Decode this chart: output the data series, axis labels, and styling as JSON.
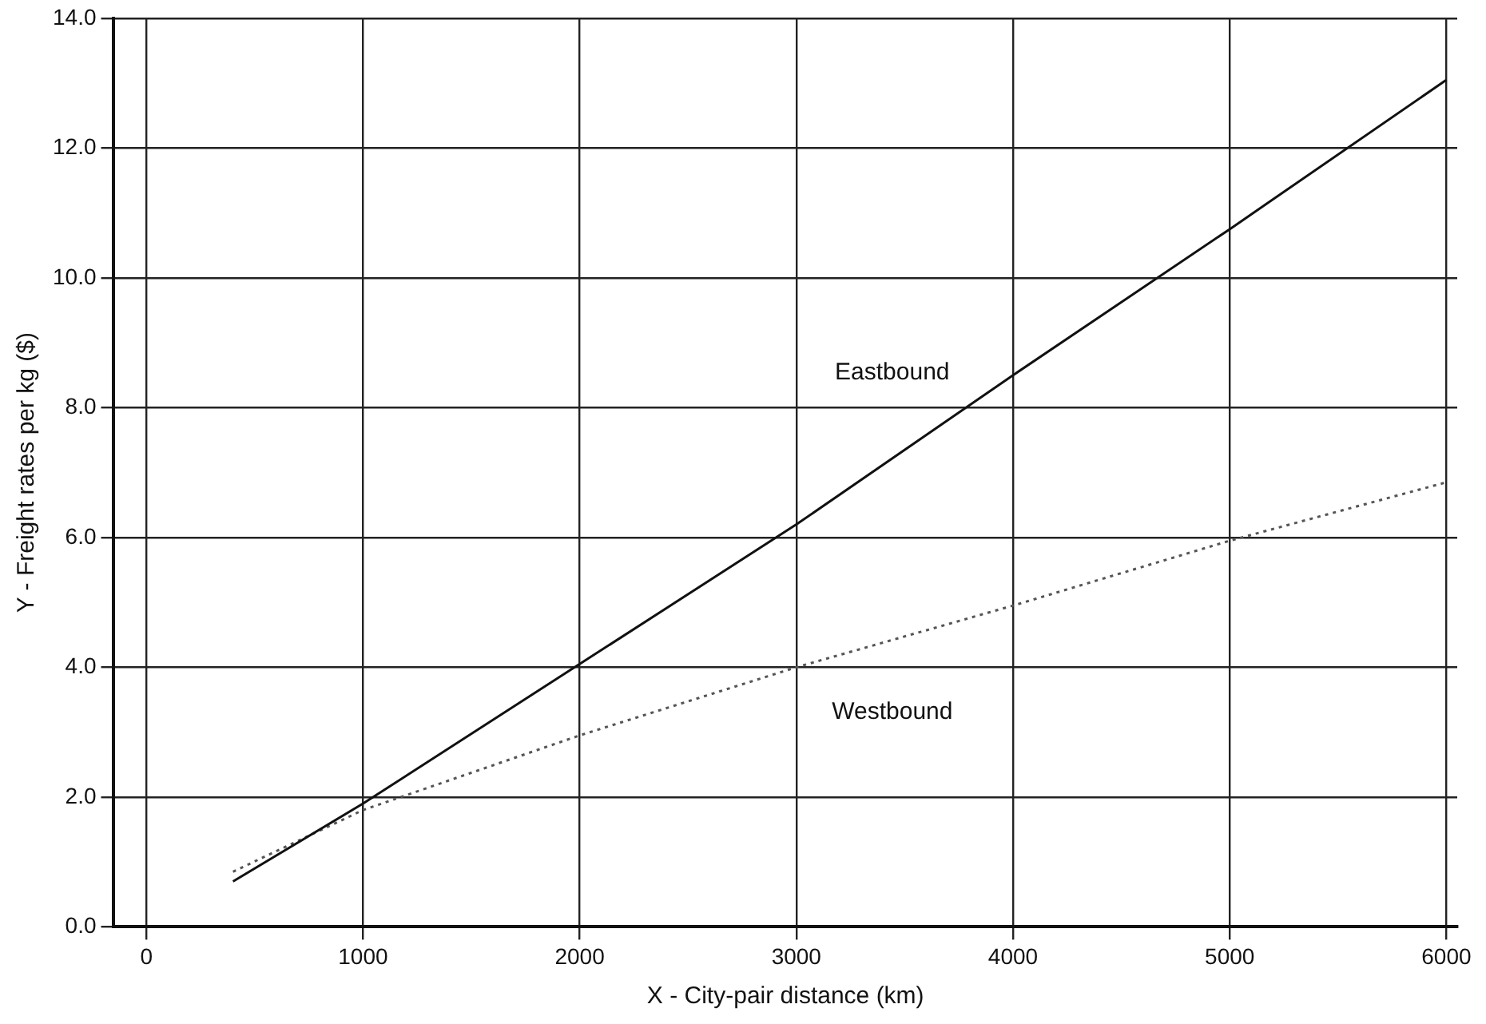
{
  "chart_data": {
    "type": "line",
    "xlabel": "X - City-pair distance (km)",
    "ylabel": "Y - Freight rates per kg ($)",
    "x": [
      400,
      1000,
      2000,
      3000,
      4000,
      5000,
      6000
    ],
    "series": [
      {
        "name": "Eastbound",
        "color": "#111111",
        "line_style": "solid",
        "values": [
          0.7,
          1.9,
          4.05,
          6.2,
          8.5,
          10.75,
          13.05
        ]
      },
      {
        "name": "Westbound",
        "color": "#555555",
        "line_style": "dotted",
        "values": [
          0.85,
          1.8,
          2.95,
          4.0,
          4.95,
          5.95,
          6.85
        ]
      }
    ],
    "xlim": [
      -150,
      6050
    ],
    "xticks": [
      0,
      1000,
      2000,
      3000,
      4000,
      5000,
      6000
    ],
    "ylim": [
      0,
      14
    ],
    "yticks": [
      {
        "value": 0,
        "label": "0.0"
      },
      {
        "value": 2,
        "label": "2.0"
      },
      {
        "value": 4,
        "label": "4.0"
      },
      {
        "value": 6,
        "label": "6.0"
      },
      {
        "value": 8,
        "label": "8.0"
      },
      {
        "value": 10,
        "label": "10.0"
      },
      {
        "value": 12,
        "label": "12.0"
      },
      {
        "value": 14,
        "label": "14.0"
      }
    ],
    "grid": true,
    "legend": false,
    "marker": "none"
  }
}
